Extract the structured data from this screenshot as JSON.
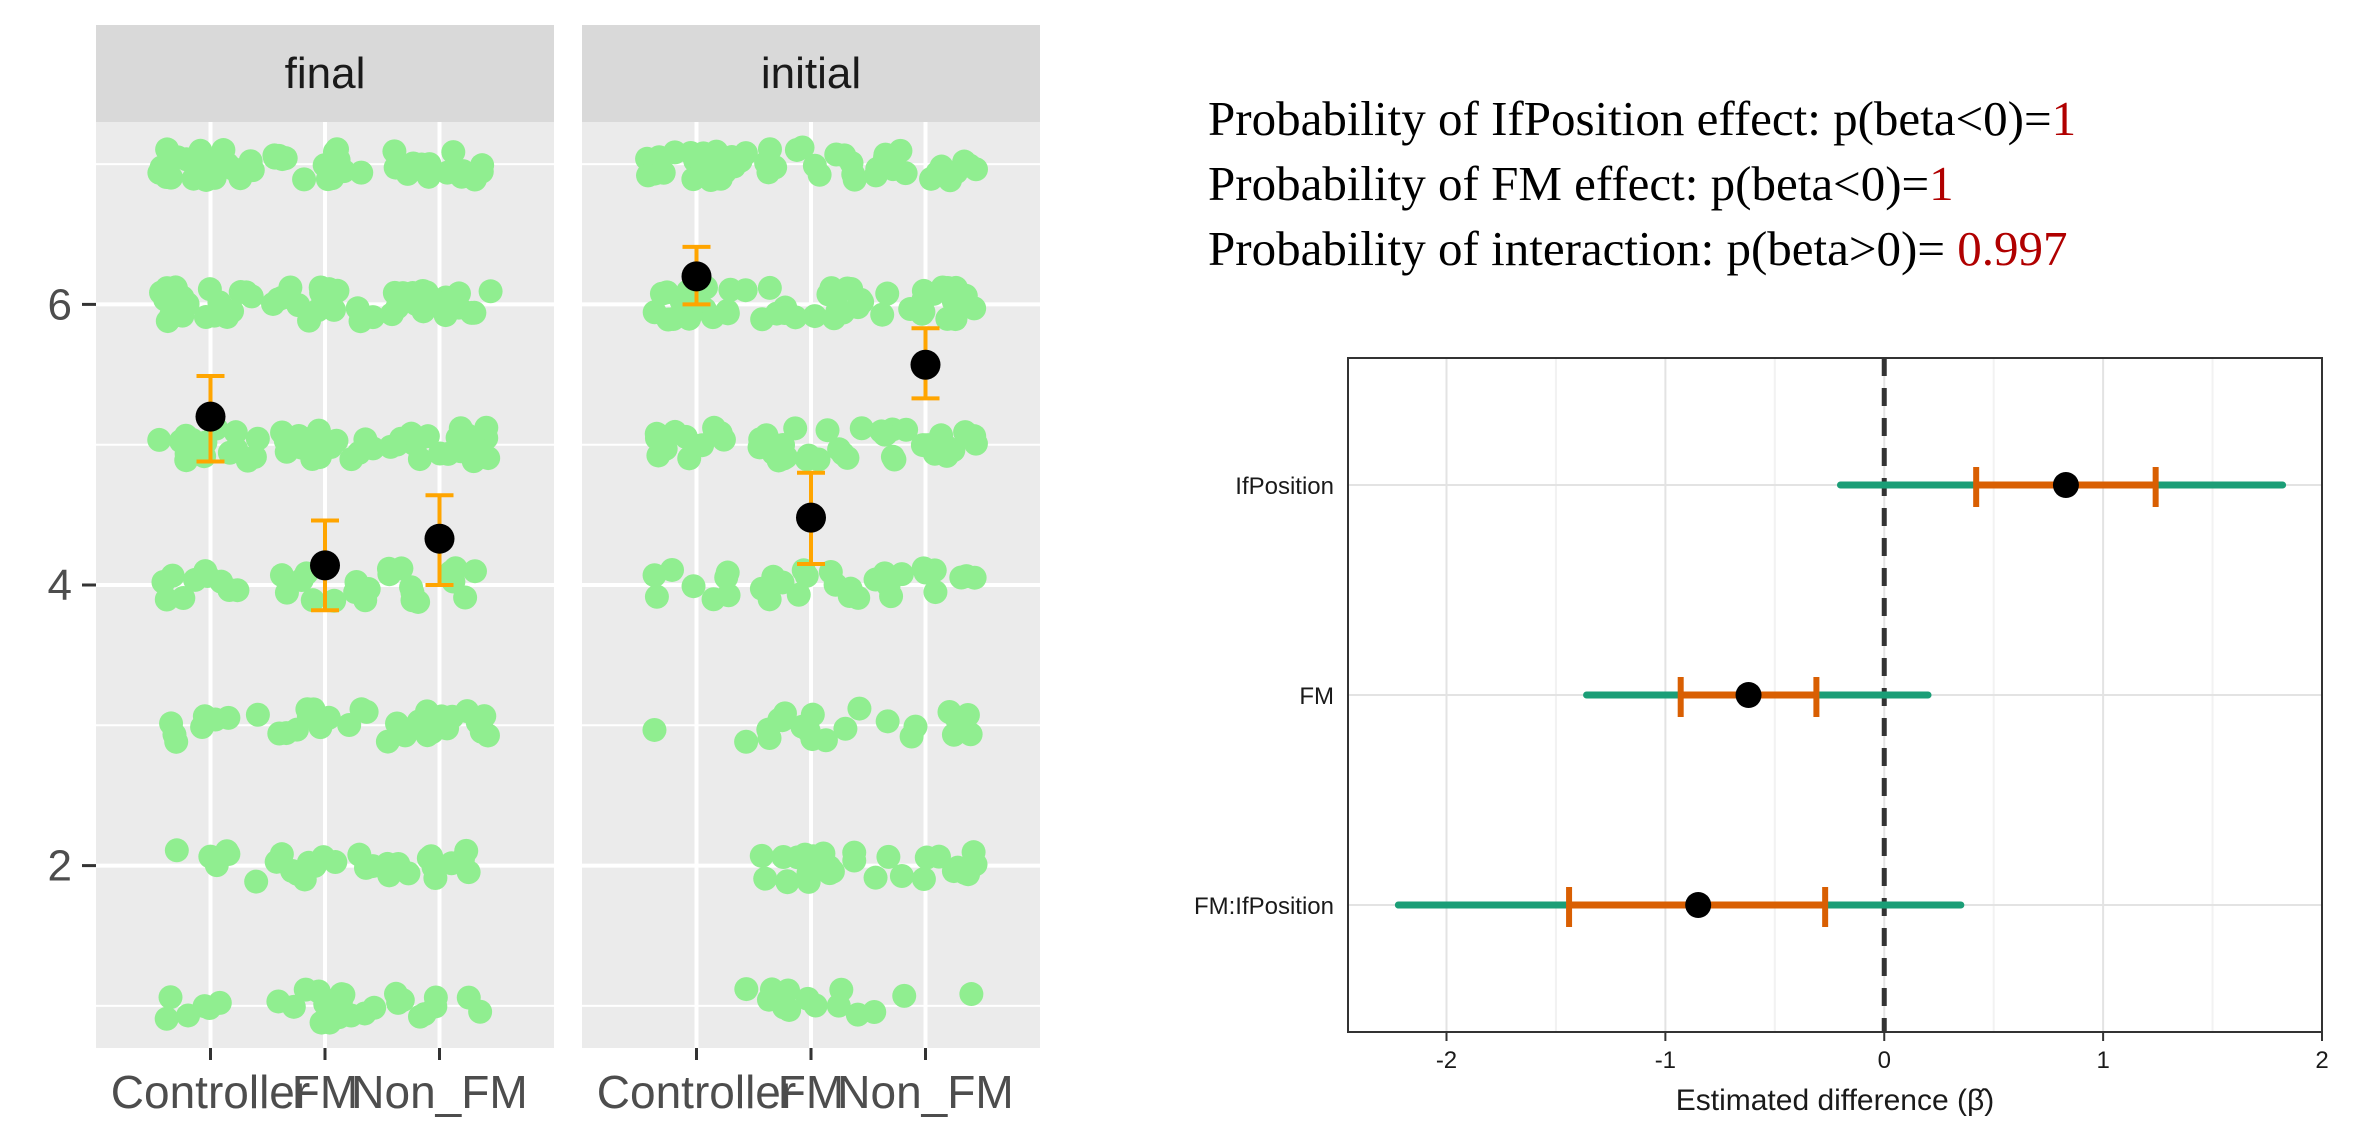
{
  "chart_data": [
    {
      "type": "scatter",
      "facets": [
        "final",
        "initial"
      ],
      "categories": [
        "Controller",
        "FM",
        "Non_FM"
      ],
      "yticks": [
        2,
        4,
        6
      ],
      "ylim": [
        0.7,
        7.3
      ],
      "grid": true,
      "point_color": "#90ee90",
      "mean_color": "#000000",
      "errorbar_color": "#ffa500",
      "means": {
        "final": [
          {
            "category": "Controller",
            "mean": 5.2,
            "lower": 4.88,
            "upper": 5.49
          },
          {
            "category": "FM",
            "mean": 4.14,
            "lower": 3.82,
            "upper": 4.46
          },
          {
            "category": "Non_FM",
            "mean": 4.33,
            "lower": 4.0,
            "upper": 4.64
          }
        ],
        "initial": [
          {
            "category": "Controller",
            "mean": 6.2,
            "lower": 6.0,
            "upper": 6.41
          },
          {
            "category": "FM",
            "mean": 4.48,
            "lower": 4.15,
            "upper": 4.8
          },
          {
            "category": "Non_FM",
            "mean": 5.57,
            "lower": 5.33,
            "upper": 5.83
          }
        ]
      },
      "responses": {
        "final": {
          "Controller": [
            [
              1,
              6
            ],
            [
              2,
              6
            ],
            [
              3,
              8
            ],
            [
              4,
              10
            ],
            [
              5,
              16
            ],
            [
              6,
              20
            ],
            [
              7,
              22
            ]
          ],
          "FM": [
            [
              1,
              14
            ],
            [
              2,
              12
            ],
            [
              3,
              12
            ],
            [
              4,
              10
            ],
            [
              5,
              16
            ],
            [
              6,
              18
            ],
            [
              7,
              14
            ]
          ],
          "Non_FM": [
            [
              1,
              10
            ],
            [
              2,
              14
            ],
            [
              3,
              16
            ],
            [
              4,
              12
            ],
            [
              5,
              20
            ],
            [
              6,
              18
            ],
            [
              7,
              16
            ]
          ]
        },
        "initial": {
          "Controller": [
            [
              1,
              1
            ],
            [
              2,
              0
            ],
            [
              3,
              2
            ],
            [
              4,
              8
            ],
            [
              5,
              12
            ],
            [
              6,
              16
            ],
            [
              7,
              26
            ]
          ],
          "FM": [
            [
              1,
              10
            ],
            [
              2,
              16
            ],
            [
              3,
              12
            ],
            [
              4,
              12
            ],
            [
              5,
              18
            ],
            [
              6,
              18
            ],
            [
              7,
              14
            ]
          ],
          "Non_FM": [
            [
              1,
              3
            ],
            [
              2,
              12
            ],
            [
              3,
              8
            ],
            [
              4,
              12
            ],
            [
              5,
              20
            ],
            [
              6,
              20
            ],
            [
              7,
              18
            ]
          ]
        }
      }
    },
    {
      "type": "forest",
      "categories": [
        "IfPosition",
        "FM",
        "FM:IfPosition"
      ],
      "estimates": [
        0.83,
        -0.62,
        -0.85
      ],
      "inner_interval": [
        [
          0.42,
          1.24
        ],
        [
          -0.93,
          -0.31
        ],
        [
          -1.44,
          -0.27
        ]
      ],
      "outer_interval": [
        [
          -0.2,
          1.82
        ],
        [
          -1.36,
          0.2
        ],
        [
          -2.22,
          0.35
        ]
      ],
      "xlim": [
        -2.45,
        2.0
      ],
      "xticks": [
        -2,
        -1,
        0,
        1,
        2
      ],
      "xlabel": "Estimated difference (β̂)",
      "reference_line": 0,
      "outer_color": "#1b9e77",
      "inner_color": "#d95f02",
      "point_color": "#000000"
    }
  ],
  "summary": {
    "lines": [
      {
        "label": "Probability of IfPosition effect: p(beta<0)=",
        "value": "1"
      },
      {
        "label": "Probability of FM effect: p(beta<0)=",
        "value": "1"
      },
      {
        "label": "Probability of interaction: p(beta>0)= ",
        "value": "0.997"
      }
    ]
  }
}
